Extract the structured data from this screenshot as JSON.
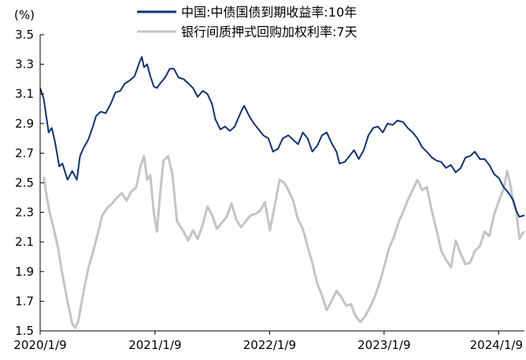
{
  "chart_data": {
    "type": "line",
    "unit_label": "(%)",
    "ylim": [
      1.5,
      3.5
    ],
    "yticks": [
      "3.5",
      "3.3",
      "3.1",
      "2.9",
      "2.7",
      "2.5",
      "2.3",
      "2.1",
      "1.9",
      "1.7",
      "1.5"
    ],
    "xlim": [
      "2020-01-09",
      "2024-03-31"
    ],
    "xticks": [
      {
        "label": "2020/1/9",
        "date": "2020-01-09"
      },
      {
        "label": "2021/1/9",
        "date": "2021-01-09"
      },
      {
        "label": "2022/1/9",
        "date": "2022-01-09"
      },
      {
        "label": "2023/1/9",
        "date": "2023-01-09"
      },
      {
        "label": "2024/1/9",
        "date": "2024-01-09"
      }
    ],
    "legend_placement": "top",
    "grid": false,
    "series": [
      {
        "name": "中国:中债国债到期收益率:10年",
        "color": "#0d3378",
        "points": [
          [
            "2020-01-09",
            3.14
          ],
          [
            "2020-01-20",
            3.07
          ],
          [
            "2020-02-05",
            2.84
          ],
          [
            "2020-02-15",
            2.87
          ],
          [
            "2020-02-25",
            2.78
          ],
          [
            "2020-03-10",
            2.61
          ],
          [
            "2020-03-20",
            2.63
          ],
          [
            "2020-04-05",
            2.52
          ],
          [
            "2020-04-20",
            2.58
          ],
          [
            "2020-05-05",
            2.52
          ],
          [
            "2020-05-15",
            2.68
          ],
          [
            "2020-05-25",
            2.73
          ],
          [
            "2020-06-10",
            2.79
          ],
          [
            "2020-06-25",
            2.88
          ],
          [
            "2020-07-05",
            2.95
          ],
          [
            "2020-07-20",
            2.98
          ],
          [
            "2020-08-05",
            2.97
          ],
          [
            "2020-08-20",
            3.03
          ],
          [
            "2020-09-05",
            3.11
          ],
          [
            "2020-09-20",
            3.12
          ],
          [
            "2020-10-05",
            3.17
          ],
          [
            "2020-10-20",
            3.19
          ],
          [
            "2020-11-05",
            3.22
          ],
          [
            "2020-11-20",
            3.31
          ],
          [
            "2020-11-28",
            3.35
          ],
          [
            "2020-12-05",
            3.28
          ],
          [
            "2020-12-15",
            3.3
          ],
          [
            "2020-12-25",
            3.22
          ],
          [
            "2021-01-05",
            3.15
          ],
          [
            "2021-01-15",
            3.14
          ],
          [
            "2021-01-25",
            3.17
          ],
          [
            "2021-02-10",
            3.21
          ],
          [
            "2021-02-25",
            3.27
          ],
          [
            "2021-03-10",
            3.27
          ],
          [
            "2021-03-25",
            3.21
          ],
          [
            "2021-04-10",
            3.2
          ],
          [
            "2021-04-25",
            3.17
          ],
          [
            "2021-05-10",
            3.14
          ],
          [
            "2021-05-25",
            3.08
          ],
          [
            "2021-06-10",
            3.12
          ],
          [
            "2021-06-25",
            3.1
          ],
          [
            "2021-07-10",
            3.03
          ],
          [
            "2021-07-20",
            2.93
          ],
          [
            "2021-08-05",
            2.86
          ],
          [
            "2021-08-20",
            2.88
          ],
          [
            "2021-09-05",
            2.85
          ],
          [
            "2021-09-20",
            2.88
          ],
          [
            "2021-10-10",
            2.98
          ],
          [
            "2021-10-20",
            3.02
          ],
          [
            "2021-11-05",
            2.95
          ],
          [
            "2021-11-20",
            2.9
          ],
          [
            "2021-12-05",
            2.86
          ],
          [
            "2021-12-20",
            2.82
          ],
          [
            "2022-01-05",
            2.8
          ],
          [
            "2022-01-20",
            2.71
          ],
          [
            "2022-02-05",
            2.73
          ],
          [
            "2022-02-20",
            2.8
          ],
          [
            "2022-03-10",
            2.82
          ],
          [
            "2022-03-25",
            2.79
          ],
          [
            "2022-04-10",
            2.76
          ],
          [
            "2022-04-25",
            2.84
          ],
          [
            "2022-05-10",
            2.8
          ],
          [
            "2022-05-25",
            2.71
          ],
          [
            "2022-06-10",
            2.75
          ],
          [
            "2022-06-25",
            2.82
          ],
          [
            "2022-07-10",
            2.84
          ],
          [
            "2022-07-25",
            2.77
          ],
          [
            "2022-08-10",
            2.71
          ],
          [
            "2022-08-20",
            2.63
          ],
          [
            "2022-09-05",
            2.64
          ],
          [
            "2022-09-20",
            2.68
          ],
          [
            "2022-10-05",
            2.72
          ],
          [
            "2022-10-20",
            2.66
          ],
          [
            "2022-11-05",
            2.72
          ],
          [
            "2022-11-20",
            2.82
          ],
          [
            "2022-12-05",
            2.87
          ],
          [
            "2022-12-20",
            2.88
          ],
          [
            "2023-01-05",
            2.84
          ],
          [
            "2023-01-20",
            2.9
          ],
          [
            "2023-02-05",
            2.89
          ],
          [
            "2023-02-20",
            2.92
          ],
          [
            "2023-03-10",
            2.91
          ],
          [
            "2023-03-25",
            2.87
          ],
          [
            "2023-04-10",
            2.84
          ],
          [
            "2023-04-25",
            2.8
          ],
          [
            "2023-05-10",
            2.74
          ],
          [
            "2023-05-25",
            2.71
          ],
          [
            "2023-06-10",
            2.67
          ],
          [
            "2023-06-25",
            2.65
          ],
          [
            "2023-07-10",
            2.64
          ],
          [
            "2023-07-25",
            2.6
          ],
          [
            "2023-08-10",
            2.62
          ],
          [
            "2023-08-25",
            2.57
          ],
          [
            "2023-09-10",
            2.6
          ],
          [
            "2023-09-25",
            2.67
          ],
          [
            "2023-10-10",
            2.68
          ],
          [
            "2023-10-25",
            2.71
          ],
          [
            "2023-11-10",
            2.66
          ],
          [
            "2023-11-25",
            2.66
          ],
          [
            "2023-12-10",
            2.62
          ],
          [
            "2023-12-25",
            2.56
          ],
          [
            "2024-01-10",
            2.53
          ],
          [
            "2024-01-25",
            2.47
          ],
          [
            "2024-02-10",
            2.43
          ],
          [
            "2024-02-25",
            2.38
          ],
          [
            "2024-03-05",
            2.31
          ],
          [
            "2024-03-15",
            2.27
          ],
          [
            "2024-03-31",
            2.28
          ]
        ]
      },
      {
        "name": "银行间质押式回购加权利率:7天",
        "color": "#c4c4c4",
        "points": [
          [
            "2020-01-20",
            2.54
          ],
          [
            "2020-02-05",
            2.33
          ],
          [
            "2020-02-20",
            2.2
          ],
          [
            "2020-03-05",
            2.07
          ],
          [
            "2020-03-20",
            1.88
          ],
          [
            "2020-04-05",
            1.7
          ],
          [
            "2020-04-20",
            1.55
          ],
          [
            "2020-04-30",
            1.52
          ],
          [
            "2020-05-10",
            1.57
          ],
          [
            "2020-05-25",
            1.75
          ],
          [
            "2020-06-10",
            1.92
          ],
          [
            "2020-06-25",
            2.03
          ],
          [
            "2020-07-10",
            2.15
          ],
          [
            "2020-07-25",
            2.28
          ],
          [
            "2020-08-10",
            2.33
          ],
          [
            "2020-08-25",
            2.36
          ],
          [
            "2020-09-10",
            2.4
          ],
          [
            "2020-09-25",
            2.43
          ],
          [
            "2020-10-10",
            2.38
          ],
          [
            "2020-10-25",
            2.44
          ],
          [
            "2020-11-10",
            2.47
          ],
          [
            "2020-11-25",
            2.62
          ],
          [
            "2020-12-05",
            2.68
          ],
          [
            "2020-12-15",
            2.52
          ],
          [
            "2020-12-25",
            2.55
          ],
          [
            "2021-01-05",
            2.3
          ],
          [
            "2021-01-15",
            2.17
          ],
          [
            "2021-01-25",
            2.42
          ],
          [
            "2021-02-05",
            2.65
          ],
          [
            "2021-02-20",
            2.68
          ],
          [
            "2021-03-05",
            2.56
          ],
          [
            "2021-03-20",
            2.24
          ],
          [
            "2021-04-10",
            2.17
          ],
          [
            "2021-04-25",
            2.11
          ],
          [
            "2021-05-10",
            2.18
          ],
          [
            "2021-05-25",
            2.12
          ],
          [
            "2021-06-10",
            2.22
          ],
          [
            "2021-06-25",
            2.34
          ],
          [
            "2021-07-10",
            2.28
          ],
          [
            "2021-07-25",
            2.19
          ],
          [
            "2021-08-10",
            2.23
          ],
          [
            "2021-08-25",
            2.27
          ],
          [
            "2021-09-10",
            2.36
          ],
          [
            "2021-09-25",
            2.25
          ],
          [
            "2021-10-10",
            2.2
          ],
          [
            "2021-10-25",
            2.24
          ],
          [
            "2021-11-10",
            2.28
          ],
          [
            "2021-11-25",
            2.29
          ],
          [
            "2021-12-10",
            2.31
          ],
          [
            "2021-12-25",
            2.37
          ],
          [
            "2022-01-10",
            2.18
          ],
          [
            "2022-01-25",
            2.34
          ],
          [
            "2022-02-10",
            2.52
          ],
          [
            "2022-02-25",
            2.5
          ],
          [
            "2022-03-10",
            2.45
          ],
          [
            "2022-03-25",
            2.38
          ],
          [
            "2022-04-10",
            2.25
          ],
          [
            "2022-04-25",
            2.19
          ],
          [
            "2022-05-10",
            2.07
          ],
          [
            "2022-05-25",
            1.96
          ],
          [
            "2022-06-10",
            1.82
          ],
          [
            "2022-06-25",
            1.74
          ],
          [
            "2022-07-10",
            1.64
          ],
          [
            "2022-07-25",
            1.7
          ],
          [
            "2022-08-10",
            1.77
          ],
          [
            "2022-08-25",
            1.73
          ],
          [
            "2022-09-10",
            1.67
          ],
          [
            "2022-09-25",
            1.68
          ],
          [
            "2022-10-10",
            1.6
          ],
          [
            "2022-10-25",
            1.56
          ],
          [
            "2022-11-10",
            1.6
          ],
          [
            "2022-11-25",
            1.66
          ],
          [
            "2022-12-10",
            1.73
          ],
          [
            "2022-12-25",
            1.82
          ],
          [
            "2023-01-10",
            1.94
          ],
          [
            "2023-01-25",
            2.06
          ],
          [
            "2023-02-10",
            2.14
          ],
          [
            "2023-02-25",
            2.24
          ],
          [
            "2023-03-10",
            2.3
          ],
          [
            "2023-03-25",
            2.38
          ],
          [
            "2023-04-10",
            2.45
          ],
          [
            "2023-04-25",
            2.52
          ],
          [
            "2023-05-10",
            2.45
          ],
          [
            "2023-05-25",
            2.47
          ],
          [
            "2023-06-10",
            2.31
          ],
          [
            "2023-06-25",
            2.18
          ],
          [
            "2023-07-10",
            2.04
          ],
          [
            "2023-07-25",
            1.98
          ],
          [
            "2023-08-10",
            1.93
          ],
          [
            "2023-08-25",
            2.11
          ],
          [
            "2023-09-10",
            2.02
          ],
          [
            "2023-09-25",
            1.95
          ],
          [
            "2023-10-10",
            1.96
          ],
          [
            "2023-10-25",
            2.04
          ],
          [
            "2023-11-10",
            2.07
          ],
          [
            "2023-11-25",
            2.17
          ],
          [
            "2023-12-10",
            2.14
          ],
          [
            "2023-12-25",
            2.28
          ],
          [
            "2024-01-10",
            2.38
          ],
          [
            "2024-01-25",
            2.46
          ],
          [
            "2024-02-05",
            2.58
          ],
          [
            "2024-02-15",
            2.49
          ],
          [
            "2024-02-25",
            2.36
          ],
          [
            "2024-03-05",
            2.32
          ],
          [
            "2024-03-15",
            2.12
          ],
          [
            "2024-03-25",
            2.16
          ],
          [
            "2024-03-31",
            2.17
          ]
        ]
      }
    ]
  }
}
